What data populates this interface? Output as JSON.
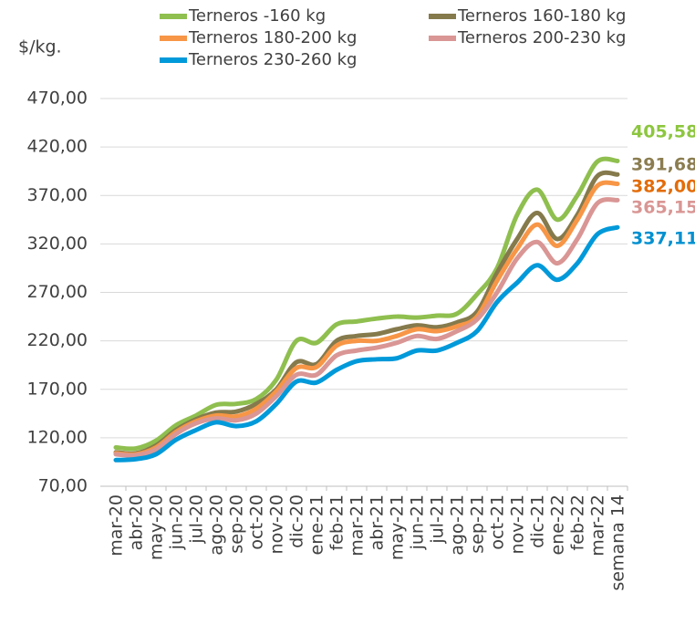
{
  "chart_data": {
    "type": "line",
    "y_label": "$/kg.",
    "categories": [
      "mar-20",
      "abr-20",
      "may-20",
      "jun-20",
      "jul-20",
      "ago-20",
      "sep-20",
      "oct-20",
      "nov-20",
      "dic-20",
      "ene-21",
      "feb-21",
      "mar-21",
      "abr-21",
      "may-21",
      "jun-21",
      "jul-21",
      "ago-21",
      "sep-21",
      "oct-21",
      "nov-21",
      "dic-21",
      "ene-22",
      "feb-22",
      "mar-22",
      "semana 14"
    ],
    "series": [
      {
        "name": "Terneros -160 kg",
        "color": "#8fbf4f",
        "label_color": "#8dc63f",
        "end_label": "405,58",
        "values": [
          110,
          109,
          117,
          133,
          143,
          154,
          155,
          160,
          180,
          220,
          218,
          237,
          240,
          243,
          245,
          244,
          246,
          248,
          268,
          295,
          350,
          376,
          345,
          370,
          405,
          405.58
        ]
      },
      {
        "name": "Terneros 160-180 kg",
        "color": "#857a4c",
        "label_color": "#8b7d50",
        "end_label": "391,68",
        "values": [
          105,
          104,
          112,
          128,
          139,
          146,
          147,
          155,
          170,
          198,
          196,
          220,
          225,
          227,
          232,
          236,
          234,
          239,
          250,
          290,
          325,
          352,
          325,
          350,
          390,
          391.68
        ]
      },
      {
        "name": "Terneros 180-200 kg",
        "color": "#f79646",
        "label_color": "#e36c09",
        "end_label": "382,00",
        "values": [
          104,
          103,
          110,
          126,
          137,
          143,
          142,
          150,
          168,
          192,
          193,
          215,
          220,
          220,
          225,
          232,
          230,
          235,
          245,
          282,
          315,
          340,
          318,
          345,
          380,
          382
        ]
      },
      {
        "name": "Terneros 200-230 kg",
        "color": "#d99694",
        "label_color": "#d99694",
        "end_label": "365,15",
        "values": [
          103,
          102,
          108,
          124,
          135,
          140,
          138,
          145,
          163,
          185,
          185,
          205,
          210,
          213,
          218,
          225,
          222,
          230,
          242,
          270,
          305,
          322,
          300,
          325,
          362,
          365.15
        ]
      },
      {
        "name": "Terneros 230-260 kg",
        "color": "#0099d9",
        "label_color": "#0090d0",
        "end_label": "337,11",
        "values": [
          97,
          98,
          103,
          118,
          128,
          136,
          132,
          137,
          155,
          178,
          177,
          190,
          199,
          201,
          202,
          210,
          210,
          218,
          230,
          260,
          280,
          298,
          283,
          300,
          330,
          337.11
        ]
      }
    ],
    "ylim": [
      70,
      470
    ],
    "yticks": [
      {
        "value": 70,
        "label": "70,00"
      },
      {
        "value": 120,
        "label": "120,00"
      },
      {
        "value": 170,
        "label": "170,00"
      },
      {
        "value": 220,
        "label": "220,00"
      },
      {
        "value": 270,
        "label": "270,00"
      },
      {
        "value": 320,
        "label": "320,00"
      },
      {
        "value": 370,
        "label": "370,00"
      },
      {
        "value": 420,
        "label": "420,00"
      },
      {
        "value": 470,
        "label": "470,00"
      }
    ],
    "grid": true
  }
}
